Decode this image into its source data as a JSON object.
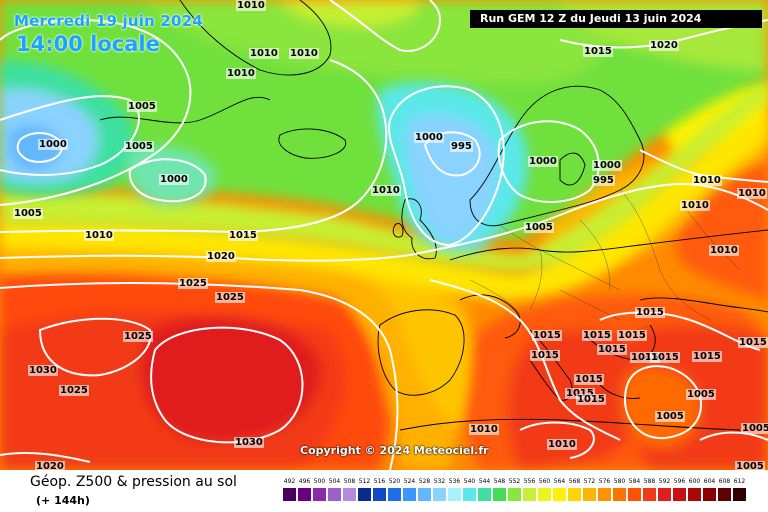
{
  "title": {
    "date": "Mercredi 19 juin 2024",
    "time": "14:00 locale",
    "run": "Run GEM 12 Z du Jeudi 13 juin 2024"
  },
  "copyright": "Copyright © 2024 Meteociel.fr",
  "footer": {
    "product": "Géop. Z500 & pression au sol",
    "lead": "(+ 144h)"
  },
  "legend": {
    "values": [
      "492",
      "496",
      "500",
      "504",
      "508",
      "512",
      "516",
      "520",
      "524",
      "528",
      "532",
      "536",
      "540",
      "544",
      "548",
      "552",
      "556",
      "560",
      "564",
      "568",
      "572",
      "576",
      "580",
      "584",
      "588",
      "592",
      "596",
      "600",
      "604",
      "608",
      "612"
    ],
    "colors": [
      "#4b0060",
      "#6a007f",
      "#8a2ba8",
      "#9f5fc8",
      "#b48be0",
      "#0a2a8c",
      "#1048c8",
      "#1e6eea",
      "#3c96ff",
      "#63b7ff",
      "#8ad2ff",
      "#a8f0ff",
      "#5ae8e8",
      "#3ee0a0",
      "#44dd55",
      "#8ae53c",
      "#c8ef32",
      "#ecf41e",
      "#fff200",
      "#ffd400",
      "#ffb400",
      "#ff9200",
      "#ff7400",
      "#ff5200",
      "#f23a18",
      "#e01e1e",
      "#c81010",
      "#a80808",
      "#880000",
      "#600000",
      "#300000"
    ]
  },
  "isobars": [
    {
      "v": "1010",
      "x": 236,
      "y": -3
    },
    {
      "v": "1010",
      "x": 249,
      "y": 48
    },
    {
      "v": "1010",
      "x": 289,
      "y": 48
    },
    {
      "v": "1010",
      "x": 226,
      "y": 68
    },
    {
      "v": "1015",
      "x": 583,
      "y": 46
    },
    {
      "v": "1020",
      "x": 649,
      "y": 40
    },
    {
      "v": "1005",
      "x": 127,
      "y": 101
    },
    {
      "v": "1005",
      "x": 124,
      "y": 141
    },
    {
      "v": "1000",
      "x": 38,
      "y": 139
    },
    {
      "v": "1000",
      "x": 159,
      "y": 174
    },
    {
      "v": "1000",
      "x": 414,
      "y": 132
    },
    {
      "v": "995",
      "x": 450,
      "y": 141
    },
    {
      "v": "1000",
      "x": 528,
      "y": 156
    },
    {
      "v": "1000",
      "x": 592,
      "y": 160
    },
    {
      "v": "995",
      "x": 592,
      "y": 175
    },
    {
      "v": "1010",
      "x": 692,
      "y": 175
    },
    {
      "v": "1010",
      "x": 737,
      "y": 188
    },
    {
      "v": "1010",
      "x": 680,
      "y": 200
    },
    {
      "v": "1010",
      "x": 371,
      "y": 185
    },
    {
      "v": "1005",
      "x": 13,
      "y": 208
    },
    {
      "v": "1010",
      "x": 84,
      "y": 230
    },
    {
      "v": "1015",
      "x": 228,
      "y": 230
    },
    {
      "v": "1005",
      "x": 524,
      "y": 222
    },
    {
      "v": "1010",
      "x": 709,
      "y": 245
    },
    {
      "v": "1020",
      "x": 206,
      "y": 251
    },
    {
      "v": "1025",
      "x": 178,
      "y": 278
    },
    {
      "v": "1025",
      "x": 215,
      "y": 292
    },
    {
      "v": "1015",
      "x": 635,
      "y": 307
    },
    {
      "v": "1015",
      "x": 532,
      "y": 330
    },
    {
      "v": "1015",
      "x": 582,
      "y": 330
    },
    {
      "v": "1015",
      "x": 617,
      "y": 330
    },
    {
      "v": "1015",
      "x": 738,
      "y": 337
    },
    {
      "v": "1025",
      "x": 123,
      "y": 331
    },
    {
      "v": "1015",
      "x": 597,
      "y": 344
    },
    {
      "v": "1015",
      "x": 530,
      "y": 350
    },
    {
      "v": "1015",
      "x": 630,
      "y": 352
    },
    {
      "v": "1015",
      "x": 650,
      "y": 352
    },
    {
      "v": "1015",
      "x": 692,
      "y": 351
    },
    {
      "v": "1030",
      "x": 28,
      "y": 365
    },
    {
      "v": "1015",
      "x": 574,
      "y": 374
    },
    {
      "v": "1015",
      "x": 565,
      "y": 388
    },
    {
      "v": "1015",
      "x": 576,
      "y": 394
    },
    {
      "v": "1005",
      "x": 686,
      "y": 389
    },
    {
      "v": "1005",
      "x": 655,
      "y": 411
    },
    {
      "v": "1025",
      "x": 59,
      "y": 385
    },
    {
      "v": "1010",
      "x": 469,
      "y": 424
    },
    {
      "v": "1005",
      "x": 741,
      "y": 423
    },
    {
      "v": "1030",
      "x": 234,
      "y": 437
    },
    {
      "v": "1010",
      "x": 547,
      "y": 439
    },
    {
      "v": "1020",
      "x": 35,
      "y": 461
    },
    {
      "v": "1005",
      "x": 735,
      "y": 461
    }
  ]
}
